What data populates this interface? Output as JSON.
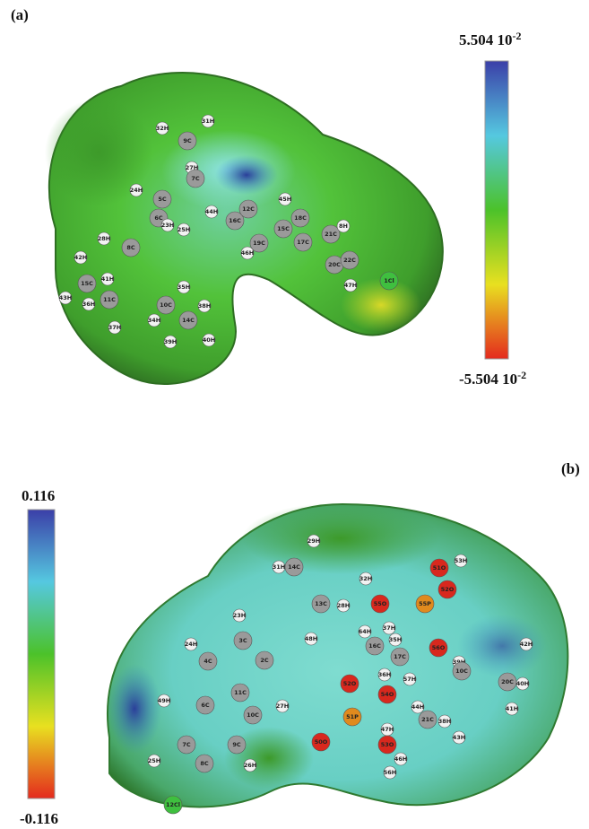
{
  "panel_a": {
    "label": "(a)",
    "scale_max": {
      "base": "5.504 10",
      "exponent": "-2"
    },
    "scale_min": {
      "base": "-5.504 10",
      "exponent": "-2"
    },
    "atoms": [
      "31H",
      "32H",
      "9C",
      "27H",
      "7C",
      "24H",
      "5C",
      "6C",
      "23H",
      "25H",
      "44H",
      "16C",
      "12C",
      "45H",
      "18C",
      "15C",
      "19C",
      "46H",
      "17C",
      "21C",
      "8H",
      "20C",
      "22C",
      "47H",
      "1Cl",
      "28H",
      "8C",
      "42H",
      "15C",
      "41H",
      "43H",
      "36H",
      "11C",
      "37H",
      "35H",
      "10C",
      "34H",
      "14C",
      "38H",
      "39H",
      "40H"
    ]
  },
  "panel_b": {
    "label": "(b)",
    "scale_max": "0.116",
    "scale_min": "-0.116",
    "atoms": [
      "29H",
      "31H",
      "14C",
      "32H",
      "13C",
      "28H",
      "53H",
      "51O",
      "52O",
      "55O",
      "55P",
      "56O",
      "64H",
      "16C",
      "37H",
      "35H",
      "17C",
      "39H",
      "10C",
      "42H",
      "20C",
      "40H",
      "41H",
      "23H",
      "48H",
      "24H",
      "4C",
      "3C",
      "2C",
      "49H",
      "6C",
      "11C",
      "10C",
      "27H",
      "7C",
      "8C",
      "9C",
      "25H",
      "26H",
      "12Cl",
      "36H",
      "57H",
      "52O",
      "54O",
      "44H",
      "21C",
      "38H",
      "51P",
      "47H",
      "50O",
      "43H",
      "53O",
      "46H",
      "56H"
    ]
  }
}
